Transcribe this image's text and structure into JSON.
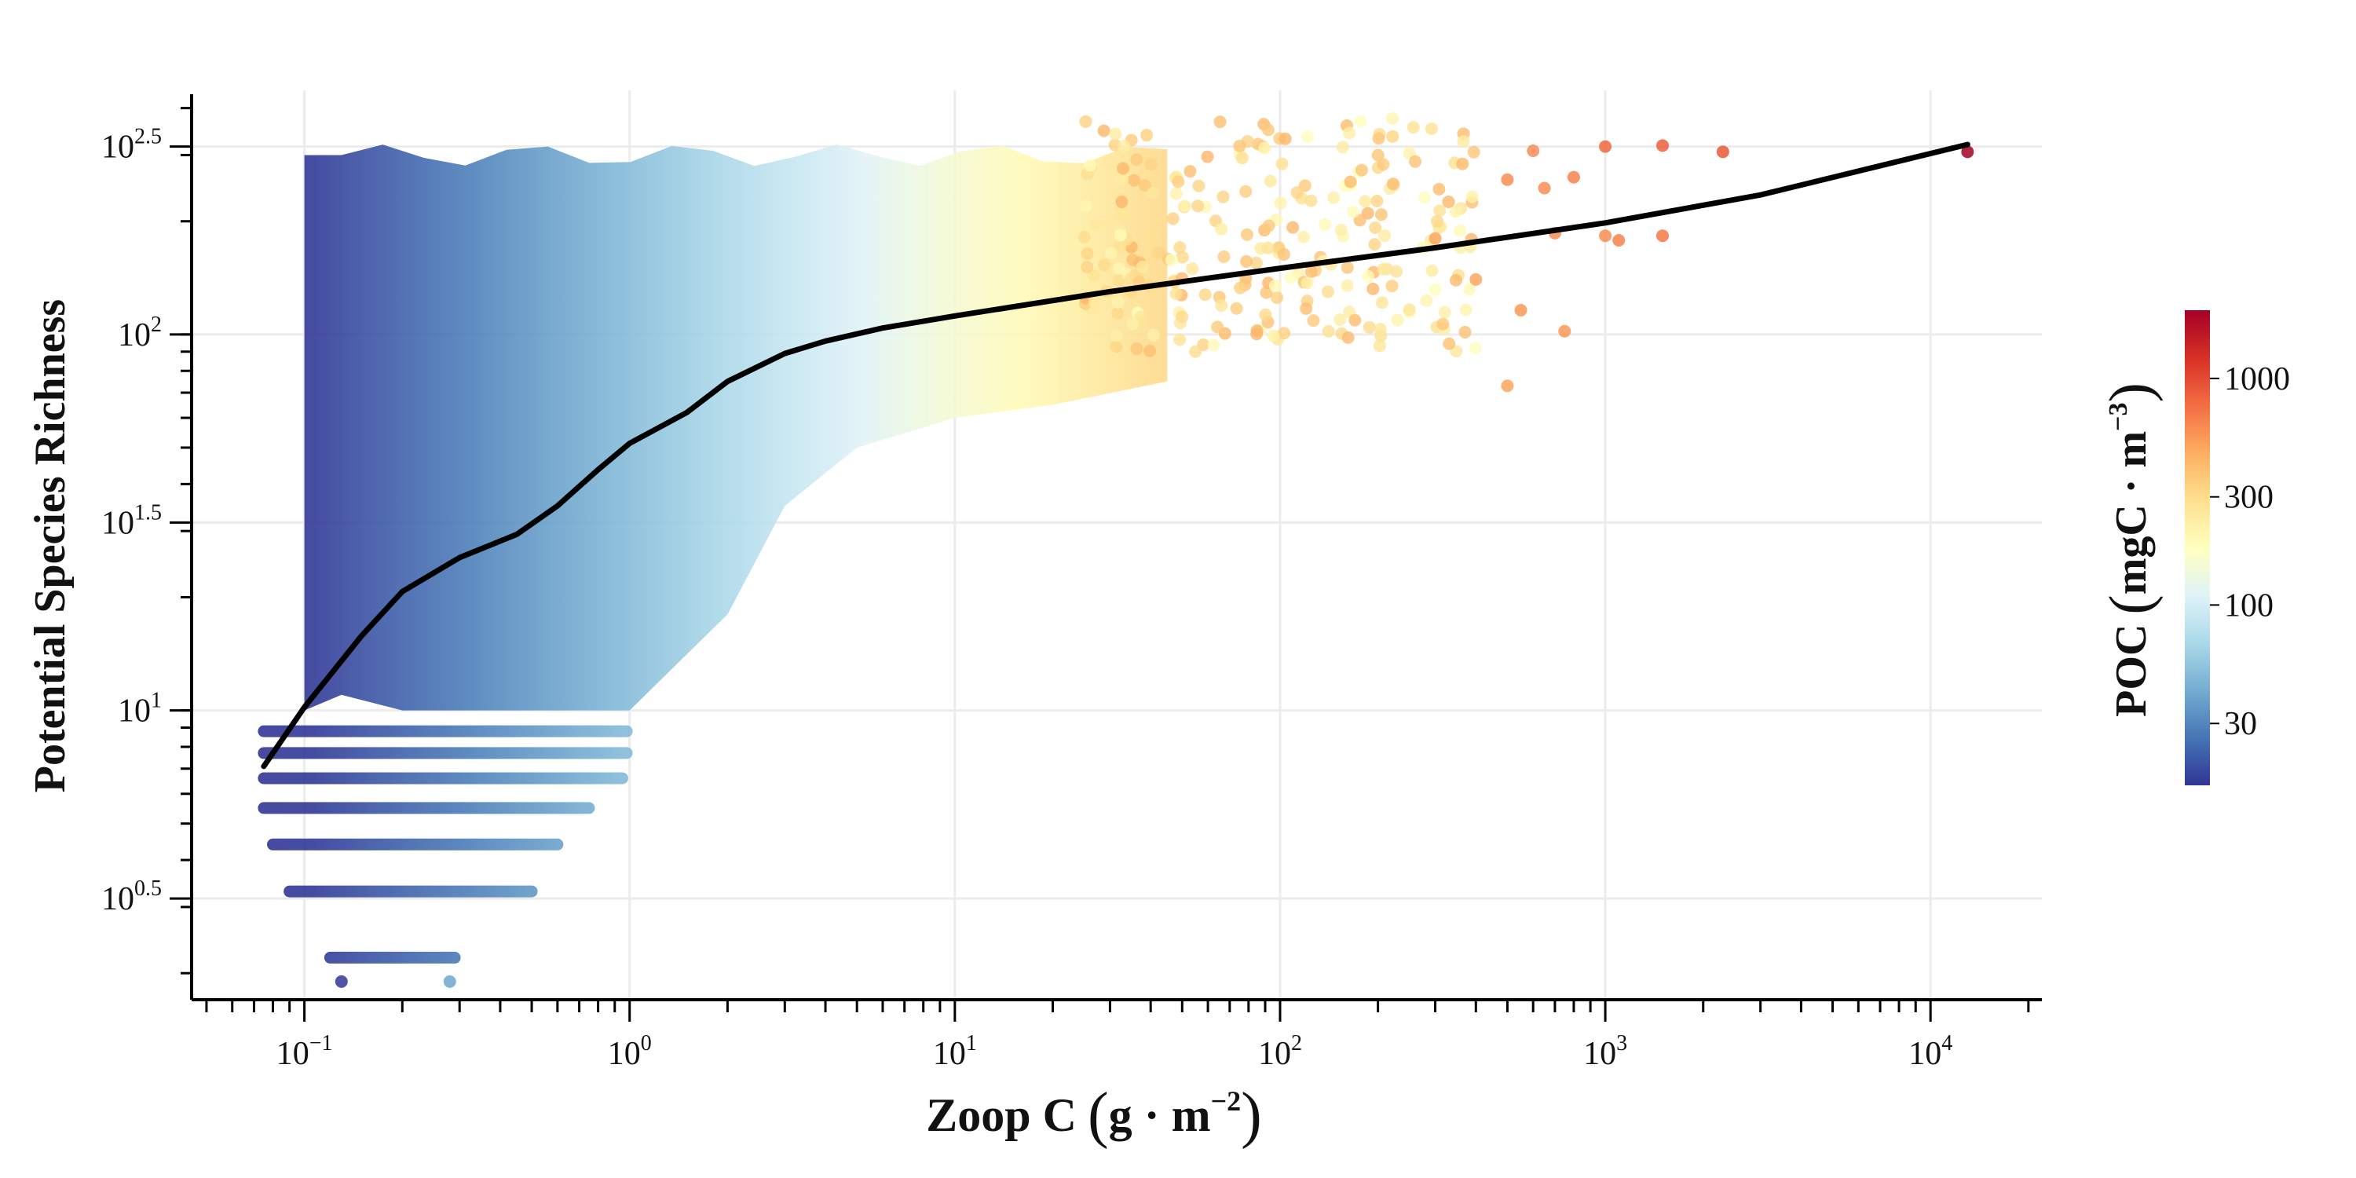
{
  "chart_data": {
    "type": "scatter",
    "xscale": "log",
    "yscale": "log",
    "xlim": [
      0.045,
      22000
    ],
    "ylim": [
      1.7,
      446
    ],
    "x_ticks": [
      {
        "value": 0.1,
        "base": "10",
        "exp": "−1"
      },
      {
        "value": 1,
        "base": "10",
        "exp": "0"
      },
      {
        "value": 10,
        "base": "10",
        "exp": "1"
      },
      {
        "value": 100,
        "base": "10",
        "exp": "2"
      },
      {
        "value": 1000,
        "base": "10",
        "exp": "3"
      },
      {
        "value": 10000,
        "base": "10",
        "exp": "4"
      }
    ],
    "y_ticks": [
      {
        "value": 3.16,
        "base": "10",
        "exp": "0.5"
      },
      {
        "value": 10,
        "base": "10",
        "exp": "1"
      },
      {
        "value": 31.6,
        "base": "10",
        "exp": "1.5"
      },
      {
        "value": 100,
        "base": "10",
        "exp": "2"
      },
      {
        "value": 316,
        "base": "10",
        "exp": "2.5"
      }
    ],
    "xlabel": {
      "main": "Zoop C",
      "unit_a": "g · m",
      "unit_exp": "−2"
    },
    "ylabel": "Potential Species Richness",
    "grid": true,
    "colorbar": {
      "label_main": "POC",
      "label_unit": "mgC · m",
      "label_exp": "−3",
      "scale": "log",
      "range": [
        16,
        2000
      ],
      "ticks": [
        {
          "value": 30,
          "label": "30"
        },
        {
          "value": 100,
          "label": "100"
        },
        {
          "value": 300,
          "label": "300"
        },
        {
          "value": 1000,
          "label": "1000"
        }
      ],
      "colors": [
        "#313695",
        "#4575b4",
        "#74add1",
        "#abd9e9",
        "#e0f3f8",
        "#ffffbf",
        "#fee090",
        "#fdae61",
        "#f46d43",
        "#d73027",
        "#a50026"
      ]
    },
    "trend_line": {
      "x": [
        0.075,
        0.1,
        0.15,
        0.2,
        0.3,
        0.45,
        0.6,
        0.8,
        1.0,
        1.5,
        2.0,
        3.0,
        4.0,
        6.0,
        10,
        30,
        100,
        300,
        1000,
        3000,
        13000
      ],
      "y": [
        7.1,
        10.2,
        15.8,
        20.7,
        25.5,
        29.4,
        35.0,
        43.7,
        51.3,
        62.0,
        75.0,
        89.0,
        96.0,
        104,
        112,
        130,
        150,
        170,
        198,
        235,
        320
      ]
    },
    "dense_cloud": {
      "x_min": 0.1,
      "x_max": 45,
      "y_top": 300,
      "lower_edge": {
        "x": [
          0.1,
          0.13,
          0.2,
          0.3,
          0.5,
          0.8,
          1.0,
          2.0,
          3.0,
          5.0,
          10,
          20,
          45
        ],
        "y": [
          10,
          11,
          10,
          10,
          10,
          10,
          10,
          18,
          35,
          50,
          60,
          65,
          75
        ]
      }
    },
    "band_rows": [
      {
        "y": 8.8,
        "x_min": 0.075,
        "x_max": 0.98
      },
      {
        "y": 7.7,
        "x_min": 0.075,
        "x_max": 0.98
      },
      {
        "y": 6.6,
        "x_min": 0.075,
        "x_max": 0.95
      },
      {
        "y": 5.5,
        "x_min": 0.075,
        "x_max": 0.75
      },
      {
        "y": 4.4,
        "x_min": 0.08,
        "x_max": 0.6
      },
      {
        "y": 3.3,
        "x_min": 0.09,
        "x_max": 0.5
      },
      {
        "y": 2.2,
        "x_min": 0.12,
        "x_max": 0.29
      }
    ],
    "outlier_points": [
      {
        "x": 13000,
        "y": 306,
        "poc": 2000
      },
      {
        "x": 2300,
        "y": 306,
        "poc": 900
      },
      {
        "x": 1500,
        "y": 318,
        "poc": 850
      },
      {
        "x": 1500,
        "y": 183,
        "poc": 700
      },
      {
        "x": 1000,
        "y": 316,
        "poc": 800
      },
      {
        "x": 1100,
        "y": 178,
        "poc": 650
      },
      {
        "x": 1000,
        "y": 183,
        "poc": 600
      },
      {
        "x": 800,
        "y": 262,
        "poc": 650
      },
      {
        "x": 700,
        "y": 186,
        "poc": 600
      },
      {
        "x": 650,
        "y": 245,
        "poc": 600
      },
      {
        "x": 500,
        "y": 258,
        "poc": 600
      },
      {
        "x": 550,
        "y": 116,
        "poc": 550
      },
      {
        "x": 500,
        "y": 73,
        "poc": 500
      },
      {
        "x": 750,
        "y": 102,
        "poc": 550
      },
      {
        "x": 600,
        "y": 308,
        "poc": 600
      },
      {
        "x": 400,
        "y": 140,
        "poc": 500
      },
      {
        "x": 300,
        "y": 180,
        "poc": 500
      },
      {
        "x": 0.13,
        "y": 1.9,
        "poc": 16
      },
      {
        "x": 0.28,
        "y": 1.9,
        "poc": 40
      }
    ],
    "sparse_scatter_region": {
      "x_min": 25,
      "x_max": 400,
      "y_min": 90,
      "y_max": 380
    }
  }
}
